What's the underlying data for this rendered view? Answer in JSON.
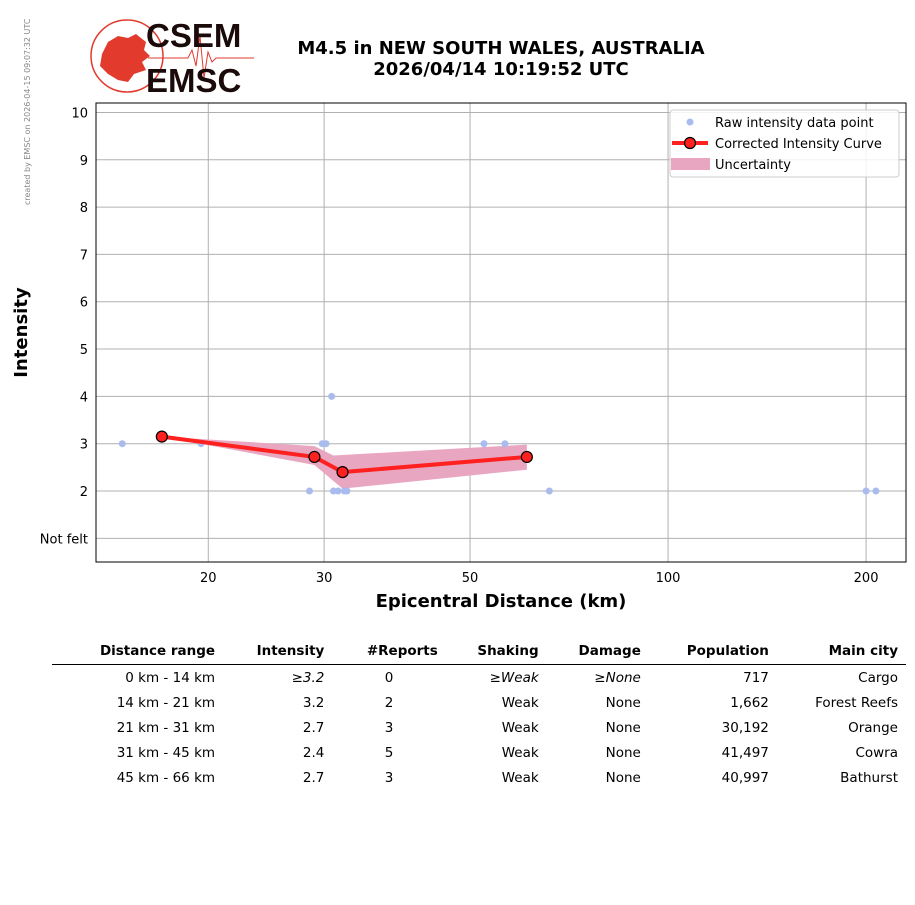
{
  "side_note": "created by EMSC on 2026-04-15 09:07:32 UTC",
  "logo": {
    "line1": "CSEM",
    "line2": "EMSC",
    "color": "#e23b2e"
  },
  "title": {
    "line1": "M4.5 in NEW SOUTH WALES, AUSTRALIA",
    "line2": "2026/04/14 10:19:52 UTC"
  },
  "chart_data": {
    "type": "scatter",
    "xlabel": "Epicentral Distance (km)",
    "ylabel": "Intensity",
    "x_scale": "log",
    "xlim": [
      13.5,
      230
    ],
    "ylim": [
      0.5,
      10.2
    ],
    "x_ticks": [
      20,
      30,
      50,
      100,
      200
    ],
    "y_ticks": [
      1,
      2,
      3,
      4,
      5,
      6,
      7,
      8,
      9,
      10
    ],
    "y_tick_labels": [
      "Not felt",
      "2",
      "3",
      "4",
      "5",
      "6",
      "7",
      "8",
      "9",
      "10"
    ],
    "grid": true,
    "legend_position": "top-right",
    "series": [
      {
        "name": "Raw intensity data point",
        "kind": "points",
        "color": "#aabbee",
        "points": [
          [
            14.8,
            3
          ],
          [
            19.5,
            3
          ],
          [
            28.5,
            2
          ],
          [
            29.8,
            3
          ],
          [
            30.2,
            3
          ],
          [
            30.8,
            4
          ],
          [
            31.0,
            2
          ],
          [
            31.5,
            2
          ],
          [
            32.2,
            2
          ],
          [
            32.5,
            2
          ],
          [
            52.5,
            3
          ],
          [
            56.5,
            3
          ],
          [
            66.0,
            2
          ],
          [
            200,
            2
          ],
          [
            207,
            2
          ]
        ]
      },
      {
        "name": "Corrected Intensity Curve",
        "kind": "line",
        "color": "#ff2020",
        "points": [
          [
            17.0,
            3.15
          ],
          [
            29.0,
            2.72
          ],
          [
            32.0,
            2.4
          ],
          [
            61.0,
            2.72
          ]
        ]
      },
      {
        "name": "Uncertainty",
        "kind": "band",
        "color": "#e8a6c0",
        "upper": [
          [
            17.0,
            3.15
          ],
          [
            29.0,
            2.95
          ],
          [
            31.0,
            2.75
          ],
          [
            61.0,
            2.98
          ]
        ],
        "lower": [
          [
            17.0,
            3.15
          ],
          [
            29.0,
            2.55
          ],
          [
            32.0,
            2.05
          ],
          [
            61.0,
            2.45
          ]
        ]
      }
    ]
  },
  "table": {
    "headers": [
      "Distance range",
      "Intensity",
      "#Reports",
      "Shaking",
      "Damage",
      "Population",
      "Main city"
    ],
    "rows": [
      [
        "0 km -   14 km",
        "≥3.2",
        "0",
        "≥Weak",
        "≥None",
        "717",
        "Cargo"
      ],
      [
        "14 km -   21 km",
        "3.2",
        "2",
        "Weak",
        "None",
        "1,662",
        "Forest Reefs"
      ],
      [
        "21 km -   31 km",
        "2.7",
        "3",
        "Weak",
        "None",
        "30,192",
        "Orange"
      ],
      [
        "31 km -   45 km",
        "2.4",
        "5",
        "Weak",
        "None",
        "41,497",
        "Cowra"
      ],
      [
        "45 km -   66 km",
        "2.7",
        "3",
        "Weak",
        "None",
        "40,997",
        "Bathurst"
      ]
    ],
    "italic_row": 0
  }
}
